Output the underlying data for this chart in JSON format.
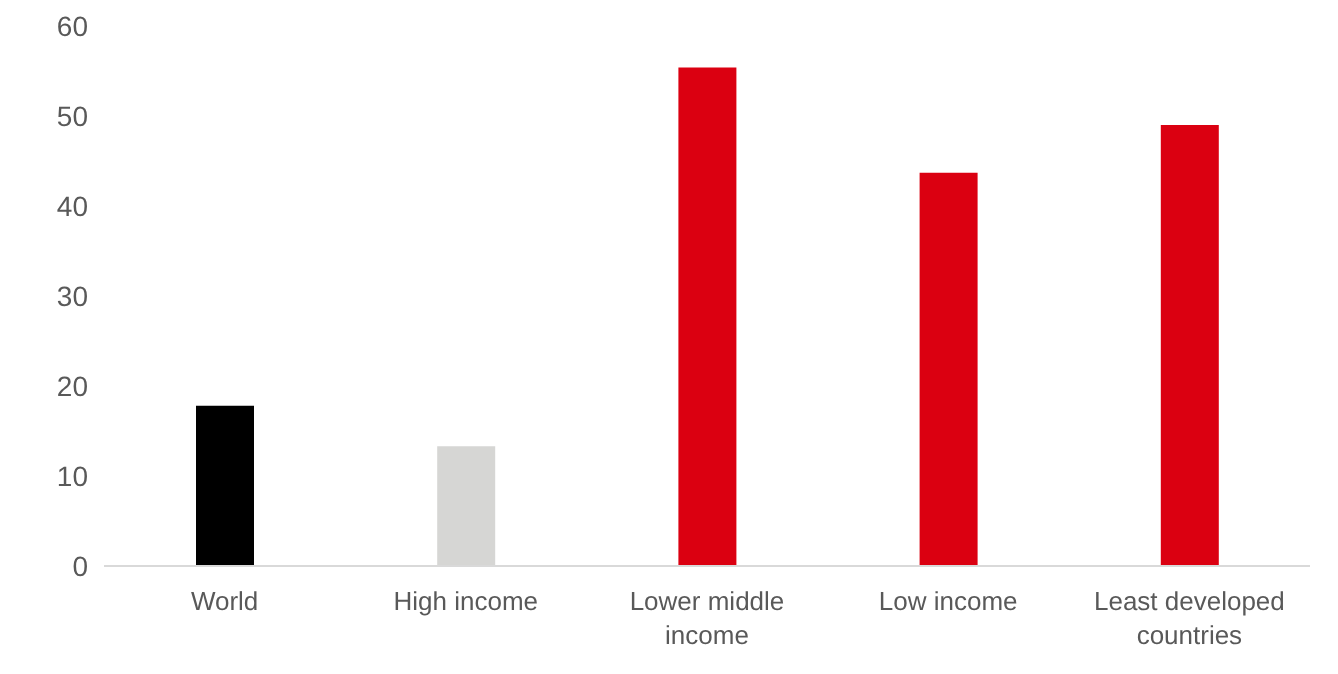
{
  "chart_data": {
    "type": "bar",
    "categories": [
      "World",
      "High income",
      "Lower middle income",
      "Low income",
      "Least developed countries"
    ],
    "values": [
      17.8,
      13.3,
      55.4,
      43.7,
      49.0
    ],
    "colors": [
      "#000000",
      "#d6d6d4",
      "#db0011",
      "#db0011",
      "#db0011"
    ],
    "ylim": [
      0,
      60
    ],
    "yticks": [
      0,
      10,
      20,
      30,
      40,
      50,
      60
    ],
    "grid": false
  }
}
